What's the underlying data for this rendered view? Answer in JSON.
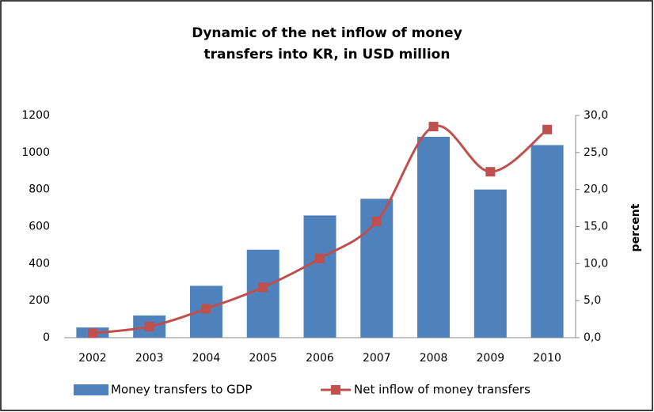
{
  "chart_data": {
    "type": "bar-line",
    "title": [
      "Dynamic of the net inflow of money",
      "transfers into KR, in USD million"
    ],
    "categories": [
      "2002",
      "2003",
      "2004",
      "2005",
      "2006",
      "2007",
      "2008",
      "2009",
      "2010"
    ],
    "series": [
      {
        "name": "Money transfers to GDP",
        "type": "bar",
        "color": "#4f81bd",
        "axis": "y",
        "values": [
          55,
          120,
          280,
          475,
          660,
          750,
          1085,
          800,
          1040
        ]
      },
      {
        "name": "Net inflow of money transfers",
        "type": "line",
        "color": "#c0504d",
        "axis": "y2",
        "smooth": true,
        "values": [
          0.6,
          1.5,
          3.9,
          6.8,
          10.7,
          15.7,
          28.5,
          22.4,
          28.1
        ]
      }
    ],
    "ylim": [
      0,
      1200
    ],
    "yticks": [
      0,
      200,
      400,
      600,
      800,
      1000,
      1200
    ],
    "y2lim": [
      0,
      30
    ],
    "y2ticks": [
      {
        "value": 0,
        "label": "0,0"
      },
      {
        "value": 5,
        "label": "5,0"
      },
      {
        "value": 10,
        "label": "10,0"
      },
      {
        "value": 15,
        "label": "15,0"
      },
      {
        "value": 20,
        "label": "20,0"
      },
      {
        "value": 25,
        "label": "25,0"
      },
      {
        "value": 30,
        "label": "30,0"
      }
    ],
    "y2label": "percent",
    "legend": "bottom"
  }
}
